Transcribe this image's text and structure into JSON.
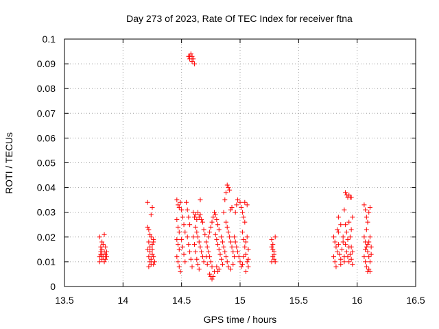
{
  "chart_data": {
    "type": "scatter",
    "title": "Day 273 of 2023, Rate Of TEC Index for receiver ftna",
    "xlabel": "GPS time / hours",
    "ylabel": "ROTI / TECUs",
    "xlim": [
      13.5,
      16.5
    ],
    "ylim": [
      0,
      0.1
    ],
    "xticks": [
      "13.5",
      "14",
      "14.5",
      "15",
      "15.5",
      "16",
      "16.5"
    ],
    "yticks": [
      "0",
      "0.01",
      "0.02",
      "0.03",
      "0.04",
      "0.05",
      "0.06",
      "0.07",
      "0.08",
      "0.09",
      "0.1"
    ],
    "grid": true,
    "marker": "+",
    "color": "#ff0000",
    "series": [
      {
        "points": [
          [
            13.8,
            0.01
          ],
          [
            13.8,
            0.012
          ],
          [
            13.81,
            0.014
          ],
          [
            13.81,
            0.016
          ],
          [
            13.82,
            0.011
          ],
          [
            13.82,
            0.013
          ],
          [
            13.82,
            0.015
          ],
          [
            13.83,
            0.017
          ],
          [
            13.83,
            0.012
          ],
          [
            13.84,
            0.014
          ],
          [
            13.84,
            0.01
          ],
          [
            13.85,
            0.013
          ],
          [
            13.85,
            0.016
          ],
          [
            13.86,
            0.012
          ],
          [
            13.86,
            0.014
          ],
          [
            13.8,
            0.02
          ],
          [
            13.84,
            0.021
          ],
          [
            13.82,
            0.018
          ],
          [
            13.85,
            0.011
          ],
          [
            13.81,
            0.013
          ],
          [
            14.21,
            0.034
          ],
          [
            14.21,
            0.024
          ],
          [
            14.22,
            0.023
          ],
          [
            14.22,
            0.018
          ],
          [
            14.23,
            0.016
          ],
          [
            14.23,
            0.014
          ],
          [
            14.22,
            0.012
          ],
          [
            14.23,
            0.01
          ],
          [
            14.24,
            0.009
          ],
          [
            14.24,
            0.011
          ],
          [
            14.25,
            0.013
          ],
          [
            14.25,
            0.015
          ],
          [
            14.25,
            0.017
          ],
          [
            14.26,
            0.019
          ],
          [
            14.26,
            0.012
          ],
          [
            14.26,
            0.009
          ],
          [
            14.21,
            0.015
          ],
          [
            14.22,
            0.008
          ],
          [
            14.24,
            0.029
          ],
          [
            14.25,
            0.032
          ],
          [
            14.23,
            0.021
          ],
          [
            14.27,
            0.01
          ],
          [
            14.24,
            0.02
          ],
          [
            14.26,
            0.018
          ],
          [
            14.46,
            0.035
          ],
          [
            14.47,
            0.033
          ],
          [
            14.48,
            0.032
          ],
          [
            14.49,
            0.034
          ],
          [
            14.46,
            0.027
          ],
          [
            14.47,
            0.024
          ],
          [
            14.48,
            0.022
          ],
          [
            14.46,
            0.019
          ],
          [
            14.47,
            0.017
          ],
          [
            14.48,
            0.015
          ],
          [
            14.46,
            0.012
          ],
          [
            14.47,
            0.01
          ],
          [
            14.48,
            0.008
          ],
          [
            14.49,
            0.006
          ],
          [
            14.5,
            0.031
          ],
          [
            14.51,
            0.028
          ],
          [
            14.52,
            0.025
          ],
          [
            14.53,
            0.022
          ],
          [
            14.5,
            0.019
          ],
          [
            14.51,
            0.016
          ],
          [
            14.52,
            0.013
          ],
          [
            14.53,
            0.01
          ],
          [
            14.54,
            0.034
          ],
          [
            14.55,
            0.031
          ],
          [
            14.56,
            0.028
          ],
          [
            14.57,
            0.025
          ],
          [
            14.55,
            0.02
          ],
          [
            14.56,
            0.017
          ],
          [
            14.57,
            0.014
          ],
          [
            14.58,
            0.011
          ],
          [
            14.59,
            0.008
          ],
          [
            14.56,
            0.093
          ],
          [
            14.57,
            0.092
          ],
          [
            14.58,
            0.094
          ],
          [
            14.59,
            0.091
          ],
          [
            14.6,
            0.092
          ],
          [
            14.61,
            0.09
          ],
          [
            14.57,
            0.093
          ],
          [
            14.59,
            0.093
          ],
          [
            14.6,
            0.03
          ],
          [
            14.61,
            0.028
          ],
          [
            14.62,
            0.029
          ],
          [
            14.63,
            0.027
          ],
          [
            14.64,
            0.03
          ],
          [
            14.65,
            0.028
          ],
          [
            14.66,
            0.029
          ],
          [
            14.67,
            0.027
          ],
          [
            14.62,
            0.024
          ],
          [
            14.63,
            0.022
          ],
          [
            14.64,
            0.02
          ],
          [
            14.65,
            0.018
          ],
          [
            14.66,
            0.016
          ],
          [
            14.67,
            0.014
          ],
          [
            14.68,
            0.012
          ],
          [
            14.69,
            0.01
          ],
          [
            14.6,
            0.02
          ],
          [
            14.61,
            0.017
          ],
          [
            14.62,
            0.014
          ],
          [
            14.63,
            0.011
          ],
          [
            14.64,
            0.009
          ],
          [
            14.65,
            0.007
          ],
          [
            14.66,
            0.035
          ],
          [
            14.68,
            0.026
          ],
          [
            14.69,
            0.023
          ],
          [
            14.7,
            0.021
          ],
          [
            14.71,
            0.018
          ],
          [
            14.72,
            0.016
          ],
          [
            14.73,
            0.014
          ],
          [
            14.74,
            0.012
          ],
          [
            14.75,
            0.01
          ],
          [
            14.76,
            0.008
          ],
          [
            14.74,
            0.005
          ],
          [
            14.75,
            0.004
          ],
          [
            14.76,
            0.003
          ],
          [
            14.77,
            0.004
          ],
          [
            14.78,
            0.006
          ],
          [
            14.72,
            0.009
          ],
          [
            14.71,
            0.012
          ],
          [
            14.73,
            0.02
          ],
          [
            14.74,
            0.022
          ],
          [
            14.75,
            0.024
          ],
          [
            14.76,
            0.026
          ],
          [
            14.77,
            0.028
          ],
          [
            14.78,
            0.03
          ],
          [
            14.79,
            0.029
          ],
          [
            14.8,
            0.027
          ],
          [
            14.81,
            0.025
          ],
          [
            14.82,
            0.023
          ],
          [
            14.79,
            0.021
          ],
          [
            14.8,
            0.019
          ],
          [
            14.81,
            0.017
          ],
          [
            14.82,
            0.015
          ],
          [
            14.83,
            0.013
          ],
          [
            14.84,
            0.011
          ],
          [
            14.85,
            0.009
          ],
          [
            14.8,
            0.008
          ],
          [
            14.81,
            0.006
          ],
          [
            14.82,
            0.007
          ],
          [
            14.84,
            0.02
          ],
          [
            14.85,
            0.018
          ],
          [
            14.86,
            0.016
          ],
          [
            14.87,
            0.014
          ],
          [
            14.88,
            0.012
          ],
          [
            14.89,
            0.01
          ],
          [
            14.86,
            0.03
          ],
          [
            14.87,
            0.035
          ],
          [
            14.88,
            0.038
          ],
          [
            14.89,
            0.041
          ],
          [
            14.9,
            0.04
          ],
          [
            14.91,
            0.039
          ],
          [
            14.88,
            0.026
          ],
          [
            14.89,
            0.024
          ],
          [
            14.9,
            0.022
          ],
          [
            14.91,
            0.02
          ],
          [
            14.92,
            0.018
          ],
          [
            14.93,
            0.016
          ],
          [
            14.94,
            0.014
          ],
          [
            14.95,
            0.012
          ],
          [
            14.92,
            0.031
          ],
          [
            14.93,
            0.032
          ],
          [
            14.9,
            0.008
          ],
          [
            14.92,
            0.007
          ],
          [
            14.94,
            0.009
          ],
          [
            14.95,
            0.02
          ],
          [
            14.96,
            0.018
          ],
          [
            14.97,
            0.016
          ],
          [
            14.98,
            0.014
          ],
          [
            14.99,
            0.012
          ],
          [
            15.0,
            0.01
          ],
          [
            15.01,
            0.008
          ],
          [
            14.96,
            0.03
          ],
          [
            14.97,
            0.033
          ],
          [
            14.98,
            0.035
          ],
          [
            15.0,
            0.034
          ],
          [
            15.01,
            0.032
          ],
          [
            15.02,
            0.03
          ],
          [
            15.03,
            0.028
          ],
          [
            15.04,
            0.026
          ],
          [
            15.02,
            0.022
          ],
          [
            15.03,
            0.019
          ],
          [
            15.04,
            0.016
          ],
          [
            15.05,
            0.013
          ],
          [
            15.06,
            0.01
          ],
          [
            15.07,
            0.008
          ],
          [
            15.05,
            0.018
          ],
          [
            15.06,
            0.02
          ],
          [
            15.07,
            0.015
          ],
          [
            15.06,
            0.033
          ],
          [
            15.04,
            0.034
          ],
          [
            15.03,
            0.012
          ],
          [
            15.02,
            0.009
          ],
          [
            15.05,
            0.006
          ],
          [
            15.07,
            0.011
          ],
          [
            15.27,
            0.019
          ],
          [
            15.28,
            0.017
          ],
          [
            15.28,
            0.015
          ],
          [
            15.29,
            0.013
          ],
          [
            15.29,
            0.011
          ],
          [
            15.27,
            0.01
          ],
          [
            15.28,
            0.012
          ],
          [
            15.29,
            0.014
          ],
          [
            15.3,
            0.02
          ],
          [
            15.27,
            0.016
          ],
          [
            15.3,
            0.01
          ],
          [
            15.8,
            0.02
          ],
          [
            15.81,
            0.018
          ],
          [
            15.82,
            0.016
          ],
          [
            15.83,
            0.014
          ],
          [
            15.8,
            0.012
          ],
          [
            15.81,
            0.01
          ],
          [
            15.82,
            0.008
          ],
          [
            15.83,
            0.023
          ],
          [
            15.84,
            0.022
          ],
          [
            15.84,
            0.017
          ],
          [
            15.85,
            0.013
          ],
          [
            15.86,
            0.011
          ],
          [
            15.86,
            0.009
          ],
          [
            15.87,
            0.015
          ],
          [
            15.88,
            0.018
          ],
          [
            15.88,
            0.02
          ],
          [
            15.89,
            0.012
          ],
          [
            15.89,
            0.01
          ],
          [
            15.84,
            0.028
          ],
          [
            15.86,
            0.025
          ],
          [
            15.89,
            0.031
          ],
          [
            15.9,
            0.038
          ],
          [
            15.91,
            0.037
          ],
          [
            15.92,
            0.036
          ],
          [
            15.93,
            0.037
          ],
          [
            15.94,
            0.036
          ],
          [
            15.95,
            0.036
          ],
          [
            15.9,
            0.025
          ],
          [
            15.91,
            0.022
          ],
          [
            15.92,
            0.019
          ],
          [
            15.93,
            0.016
          ],
          [
            15.94,
            0.013
          ],
          [
            15.95,
            0.011
          ],
          [
            15.96,
            0.009
          ],
          [
            15.91,
            0.014
          ],
          [
            15.92,
            0.012
          ],
          [
            15.93,
            0.01
          ],
          [
            15.94,
            0.02
          ],
          [
            15.95,
            0.023
          ],
          [
            15.96,
            0.028
          ],
          [
            15.95,
            0.016
          ],
          [
            15.96,
            0.014
          ],
          [
            15.93,
            0.026
          ],
          [
            15.9,
            0.017
          ],
          [
            16.06,
            0.033
          ],
          [
            16.07,
            0.031
          ],
          [
            16.08,
            0.028
          ],
          [
            16.09,
            0.026
          ],
          [
            16.1,
            0.03
          ],
          [
            16.11,
            0.032
          ],
          [
            16.06,
            0.02
          ],
          [
            16.07,
            0.018
          ],
          [
            16.08,
            0.016
          ],
          [
            16.09,
            0.014
          ],
          [
            16.1,
            0.012
          ],
          [
            16.11,
            0.01
          ],
          [
            16.06,
            0.012
          ],
          [
            16.07,
            0.01
          ],
          [
            16.08,
            0.008
          ],
          [
            16.09,
            0.006
          ],
          [
            16.1,
            0.007
          ],
          [
            16.11,
            0.006
          ],
          [
            16.08,
            0.023
          ],
          [
            16.1,
            0.018
          ],
          [
            16.11,
            0.02
          ],
          [
            16.07,
            0.015
          ],
          [
            16.09,
            0.017
          ],
          [
            16.12,
            0.016
          ],
          [
            16.12,
            0.013
          ]
        ]
      }
    ]
  }
}
